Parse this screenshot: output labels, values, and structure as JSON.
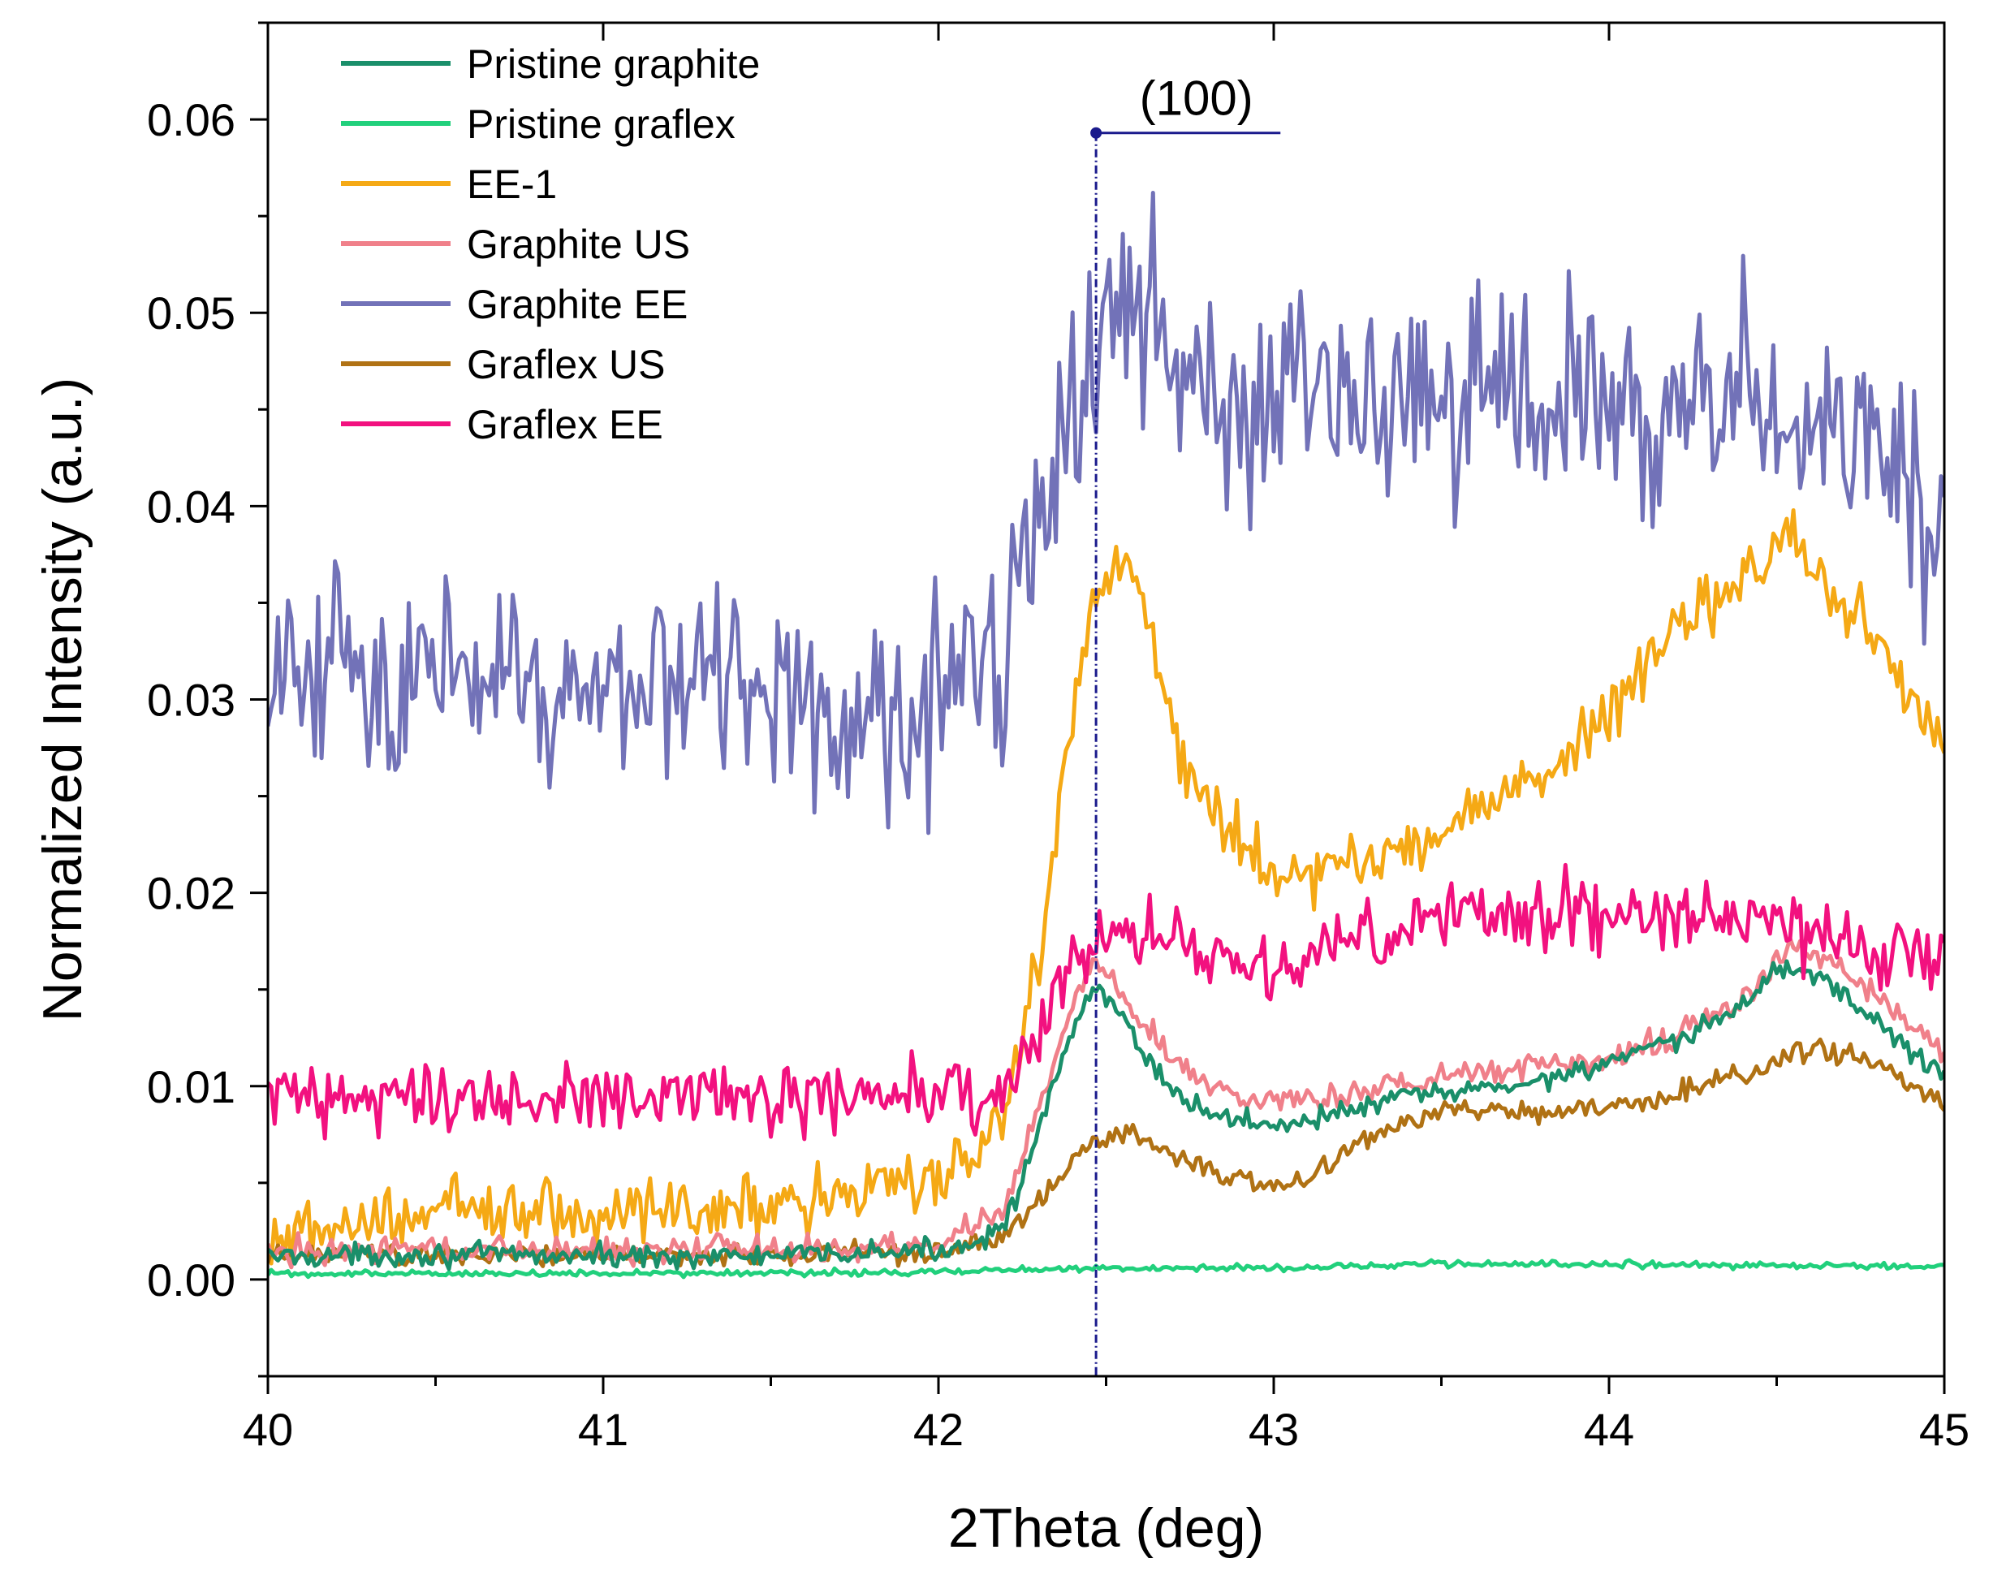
{
  "chart_data": {
    "type": "line",
    "title": "",
    "xlabel": "2Theta (deg)",
    "ylabel": "Normalized Intensity (a.u.)",
    "xlim": [
      40,
      45
    ],
    "ylim": [
      -0.005,
      0.065
    ],
    "xticks": [
      40,
      41,
      42,
      43,
      44,
      45
    ],
    "xtick_labels": [
      "40",
      "41",
      "42",
      "43",
      "44",
      "45"
    ],
    "yticks": [
      0.0,
      0.01,
      0.02,
      0.03,
      0.04,
      0.05,
      0.06
    ],
    "ytick_labels": [
      "0.00",
      "0.01",
      "0.02",
      "0.03",
      "0.04",
      "0.05",
      "0.06"
    ],
    "grid": false,
    "legend_position": "top-left",
    "annotation": {
      "label": "(100)",
      "x": 42.47,
      "y_marker": 0.0593,
      "x_end": 43.02,
      "color": "#1a1a8c"
    },
    "series": [
      {
        "name": "Pristine graphite",
        "color": "#1a8f6a",
        "noise": 0.0004,
        "points": [
          [
            40.0,
            0.0012
          ],
          [
            40.5,
            0.0013
          ],
          [
            41.0,
            0.0012
          ],
          [
            41.5,
            0.0012
          ],
          [
            42.0,
            0.0015
          ],
          [
            42.1,
            0.0019
          ],
          [
            42.2,
            0.003
          ],
          [
            42.3,
            0.0075
          ],
          [
            42.38,
            0.012
          ],
          [
            42.47,
            0.0152
          ],
          [
            42.55,
            0.0135
          ],
          [
            42.65,
            0.0108
          ],
          [
            42.75,
            0.009
          ],
          [
            42.9,
            0.0082
          ],
          [
            43.0,
            0.008
          ],
          [
            43.1,
            0.0083
          ],
          [
            43.2,
            0.0086
          ],
          [
            43.4,
            0.0095
          ],
          [
            43.6,
            0.0098
          ],
          [
            43.8,
            0.0103
          ],
          [
            44.0,
            0.0113
          ],
          [
            44.2,
            0.0122
          ],
          [
            44.4,
            0.0142
          ],
          [
            44.5,
            0.0162
          ],
          [
            44.65,
            0.0155
          ],
          [
            44.8,
            0.0133
          ],
          [
            44.9,
            0.0118
          ],
          [
            45.0,
            0.0105
          ]
        ]
      },
      {
        "name": "Pristine graflex",
        "color": "#21d07c",
        "noise": 0.00012,
        "points": [
          [
            40.0,
            0.0003
          ],
          [
            41.0,
            0.0003
          ],
          [
            42.0,
            0.0004
          ],
          [
            42.47,
            0.0006
          ],
          [
            43.0,
            0.0006
          ],
          [
            43.5,
            0.0008
          ],
          [
            44.0,
            0.0008
          ],
          [
            44.5,
            0.0007
          ],
          [
            45.0,
            0.0007
          ]
        ]
      },
      {
        "name": "EE-1",
        "color": "#f5a915",
        "noise": 0.0012,
        "points": [
          [
            40.0,
            0.0025
          ],
          [
            40.5,
            0.0034
          ],
          [
            41.0,
            0.0036
          ],
          [
            41.5,
            0.0038
          ],
          [
            41.9,
            0.0046
          ],
          [
            42.1,
            0.006
          ],
          [
            42.2,
            0.0085
          ],
          [
            42.3,
            0.017
          ],
          [
            42.38,
            0.027
          ],
          [
            42.45,
            0.0345
          ],
          [
            42.55,
            0.0375
          ],
          [
            42.65,
            0.032
          ],
          [
            42.75,
            0.026
          ],
          [
            42.9,
            0.0225
          ],
          [
            43.0,
            0.021
          ],
          [
            43.2,
            0.0212
          ],
          [
            43.4,
            0.0222
          ],
          [
            43.6,
            0.0245
          ],
          [
            43.8,
            0.0262
          ],
          [
            44.0,
            0.029
          ],
          [
            44.2,
            0.0338
          ],
          [
            44.4,
            0.0362
          ],
          [
            44.55,
            0.0385
          ],
          [
            44.7,
            0.035
          ],
          [
            44.85,
            0.032
          ],
          [
            45.0,
            0.027
          ]
        ]
      },
      {
        "name": "Graphite US",
        "color": "#f0808a",
        "noise": 0.0005,
        "points": [
          [
            40.0,
            0.0015
          ],
          [
            40.5,
            0.0016
          ],
          [
            41.0,
            0.0015
          ],
          [
            41.5,
            0.0016
          ],
          [
            42.0,
            0.0018
          ],
          [
            42.2,
            0.0038
          ],
          [
            42.3,
            0.0085
          ],
          [
            42.4,
            0.0142
          ],
          [
            42.47,
            0.0165
          ],
          [
            42.6,
            0.0135
          ],
          [
            42.75,
            0.0105
          ],
          [
            42.9,
            0.0094
          ],
          [
            43.0,
            0.009
          ],
          [
            43.2,
            0.0095
          ],
          [
            43.4,
            0.0102
          ],
          [
            43.6,
            0.0108
          ],
          [
            43.8,
            0.011
          ],
          [
            44.0,
            0.0115
          ],
          [
            44.2,
            0.0126
          ],
          [
            44.4,
            0.0146
          ],
          [
            44.55,
            0.0173
          ],
          [
            44.7,
            0.016
          ],
          [
            44.85,
            0.014
          ],
          [
            45.0,
            0.0118
          ]
        ]
      },
      {
        "name": "Graphite EE",
        "color": "#7272b8",
        "noise": 0.0038,
        "points": [
          [
            40.0,
            0.0315
          ],
          [
            40.5,
            0.0315
          ],
          [
            41.0,
            0.0308
          ],
          [
            41.5,
            0.031
          ],
          [
            41.9,
            0.0285
          ],
          [
            42.1,
            0.031
          ],
          [
            42.2,
            0.0325
          ],
          [
            42.3,
            0.0385
          ],
          [
            42.4,
            0.0445
          ],
          [
            42.5,
            0.0492
          ],
          [
            42.6,
            0.0505
          ],
          [
            42.75,
            0.0465
          ],
          [
            42.9,
            0.0445
          ],
          [
            43.1,
            0.046
          ],
          [
            43.3,
            0.0455
          ],
          [
            43.5,
            0.0448
          ],
          [
            43.7,
            0.045
          ],
          [
            43.9,
            0.0455
          ],
          [
            44.1,
            0.0452
          ],
          [
            44.3,
            0.0448
          ],
          [
            44.5,
            0.0455
          ],
          [
            44.7,
            0.0435
          ],
          [
            44.85,
            0.0415
          ],
          [
            45.0,
            0.0365
          ]
        ]
      },
      {
        "name": "Graflex US",
        "color": "#b07214",
        "noise": 0.0004,
        "points": [
          [
            40.0,
            0.0012
          ],
          [
            40.5,
            0.0013
          ],
          [
            41.0,
            0.0012
          ],
          [
            41.5,
            0.0013
          ],
          [
            42.0,
            0.0014
          ],
          [
            42.2,
            0.0022
          ],
          [
            42.3,
            0.0042
          ],
          [
            42.4,
            0.0062
          ],
          [
            42.5,
            0.0075
          ],
          [
            42.6,
            0.0074
          ],
          [
            42.7,
            0.0065
          ],
          [
            42.85,
            0.0055
          ],
          [
            43.0,
            0.0048
          ],
          [
            43.1,
            0.005
          ],
          [
            43.2,
            0.0065
          ],
          [
            43.4,
            0.0083
          ],
          [
            43.6,
            0.0088
          ],
          [
            43.8,
            0.0087
          ],
          [
            44.0,
            0.0088
          ],
          [
            44.2,
            0.0095
          ],
          [
            44.4,
            0.0107
          ],
          [
            44.6,
            0.0118
          ],
          [
            44.75,
            0.0115
          ],
          [
            44.9,
            0.0102
          ],
          [
            45.0,
            0.009
          ]
        ]
      },
      {
        "name": "Graflex EE",
        "color": "#f2117f",
        "noise": 0.0013,
        "points": [
          [
            40.0,
            0.0095
          ],
          [
            40.5,
            0.0092
          ],
          [
            41.0,
            0.0093
          ],
          [
            41.5,
            0.0093
          ],
          [
            42.0,
            0.0095
          ],
          [
            42.2,
            0.0098
          ],
          [
            42.3,
            0.0128
          ],
          [
            42.4,
            0.0165
          ],
          [
            42.5,
            0.018
          ],
          [
            42.7,
            0.0175
          ],
          [
            42.9,
            0.0165
          ],
          [
            43.0,
            0.016
          ],
          [
            43.2,
            0.0175
          ],
          [
            43.4,
            0.0188
          ],
          [
            43.6,
            0.0188
          ],
          [
            43.8,
            0.0192
          ],
          [
            44.0,
            0.0188
          ],
          [
            44.2,
            0.0185
          ],
          [
            44.4,
            0.019
          ],
          [
            44.6,
            0.0178
          ],
          [
            44.8,
            0.0168
          ],
          [
            45.0,
            0.0168
          ]
        ]
      }
    ]
  }
}
